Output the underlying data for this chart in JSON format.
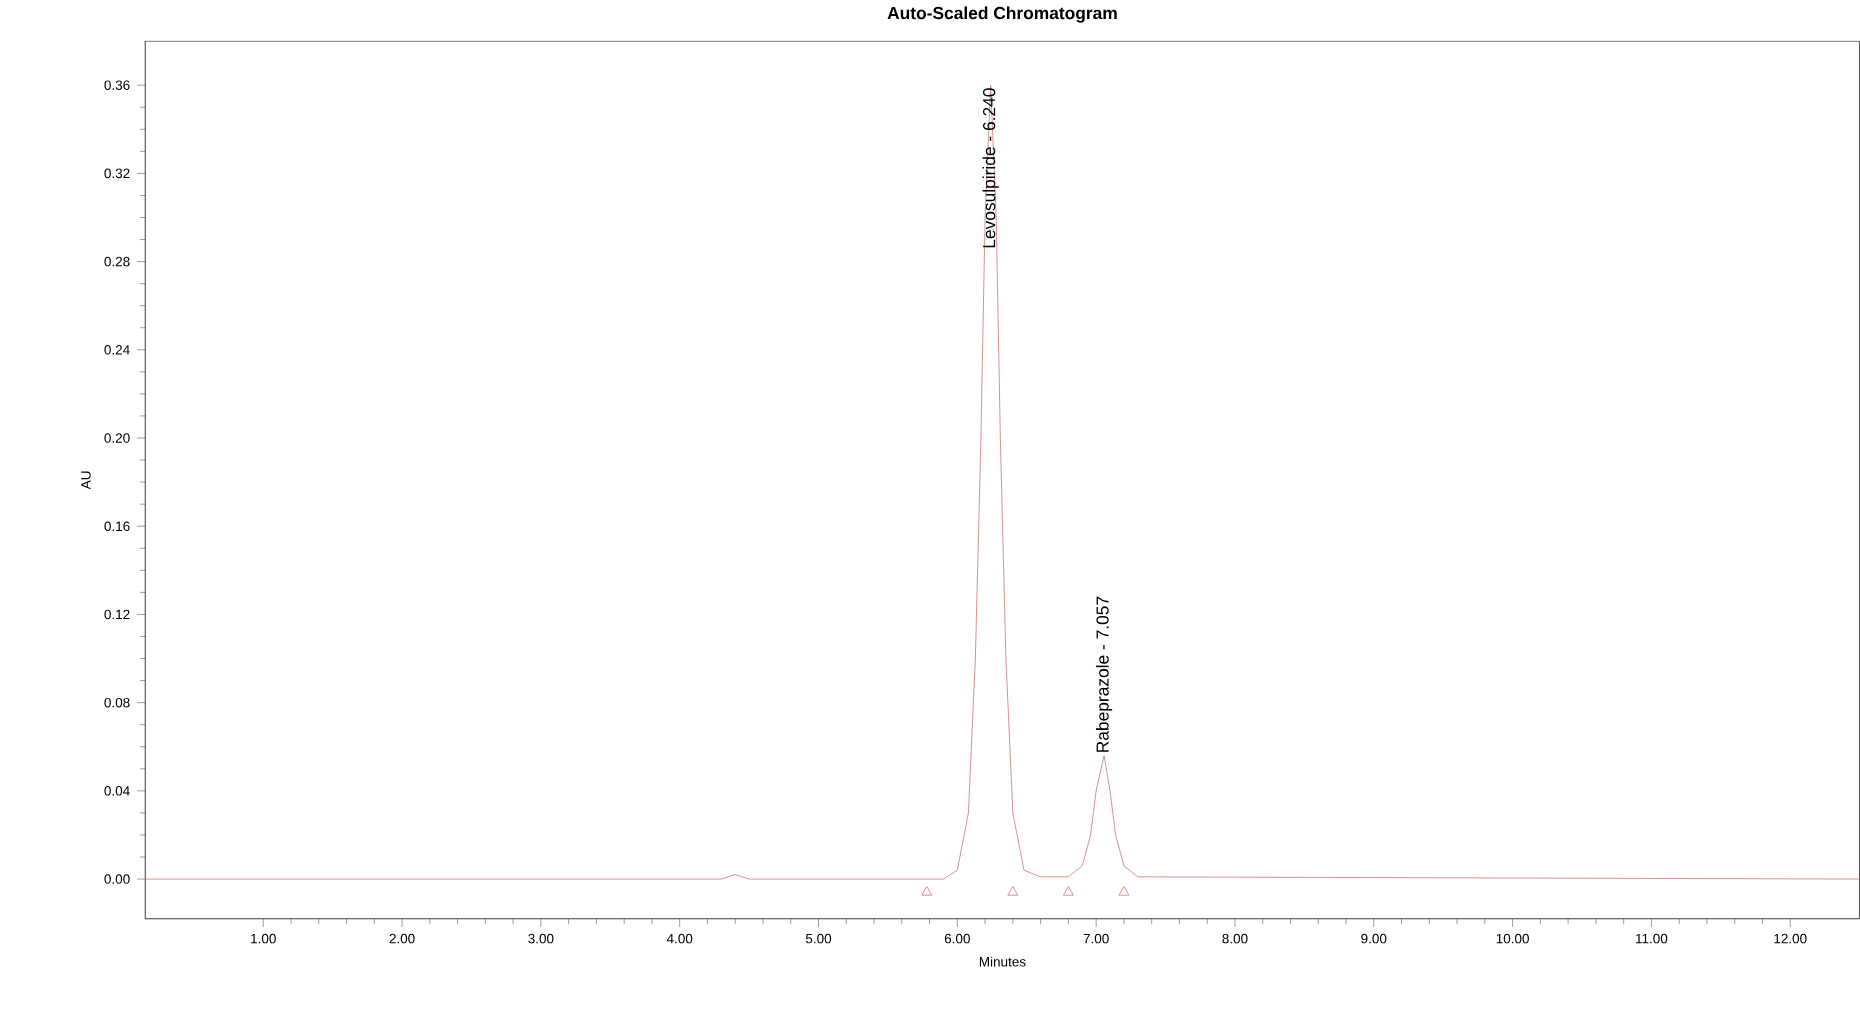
{
  "chart_data": {
    "type": "line",
    "title": "Auto-Scaled Chromatogram",
    "xlabel": "Minutes",
    "ylabel": "AU",
    "xlim": [
      0.15,
      12.5
    ],
    "ylim": [
      -0.018,
      0.38
    ],
    "xticks": [
      {
        "value": 1,
        "label": "1.00"
      },
      {
        "value": 2,
        "label": "2.00"
      },
      {
        "value": 3,
        "label": "3.00"
      },
      {
        "value": 4,
        "label": "4.00"
      },
      {
        "value": 5,
        "label": "5.00"
      },
      {
        "value": 6,
        "label": "6.00"
      },
      {
        "value": 7,
        "label": "7.00"
      },
      {
        "value": 8,
        "label": "8.00"
      },
      {
        "value": 9,
        "label": "9.00"
      },
      {
        "value": 10,
        "label": "10.00"
      },
      {
        "value": 11,
        "label": "11.00"
      },
      {
        "value": 12,
        "label": "12.00"
      }
    ],
    "yticks": [
      {
        "value": 0,
        "label": "0.00"
      },
      {
        "value": 0.04,
        "label": "0.04"
      },
      {
        "value": 0.08,
        "label": "0.08"
      },
      {
        "value": 0.12,
        "label": "0.12"
      },
      {
        "value": 0.16,
        "label": "0.16"
      },
      {
        "value": 0.2,
        "label": "0.20"
      },
      {
        "value": 0.24,
        "label": "0.24"
      },
      {
        "value": 0.28,
        "label": "0.28"
      },
      {
        "value": 0.32,
        "label": "0.32"
      },
      {
        "value": 0.36,
        "label": "0.36"
      }
    ],
    "series": [
      {
        "color": "#d07070",
        "x": [
          0.15,
          4.3,
          4.4,
          4.5,
          5.9,
          6.0,
          6.08,
          6.13,
          6.17,
          6.2,
          6.24,
          6.28,
          6.31,
          6.35,
          6.4,
          6.48,
          6.6,
          6.8,
          6.9,
          6.96,
          7.0,
          7.057,
          7.1,
          7.14,
          7.2,
          7.3,
          12.5
        ],
        "values": [
          0,
          0,
          0.002,
          0,
          0,
          0.004,
          0.03,
          0.1,
          0.2,
          0.3,
          0.36,
          0.3,
          0.2,
          0.1,
          0.03,
          0.004,
          0.001,
          0.001,
          0.006,
          0.02,
          0.04,
          0.056,
          0.04,
          0.02,
          0.006,
          0.001,
          0
        ]
      },
      {
        "type": "scatter",
        "marker": "triangle",
        "color": "#d07070",
        "x": [
          5.78,
          6.4,
          6.8,
          7.2
        ],
        "values": [
          -0.006,
          -0.006,
          -0.006,
          -0.006
        ]
      }
    ],
    "annotations": [
      {
        "text": "Levosulpiride - 6.240",
        "x": 6.24,
        "y": 0.36
      },
      {
        "text": "Rabeprazole - 7.057",
        "x": 7.057,
        "y": 0.056
      }
    ]
  }
}
